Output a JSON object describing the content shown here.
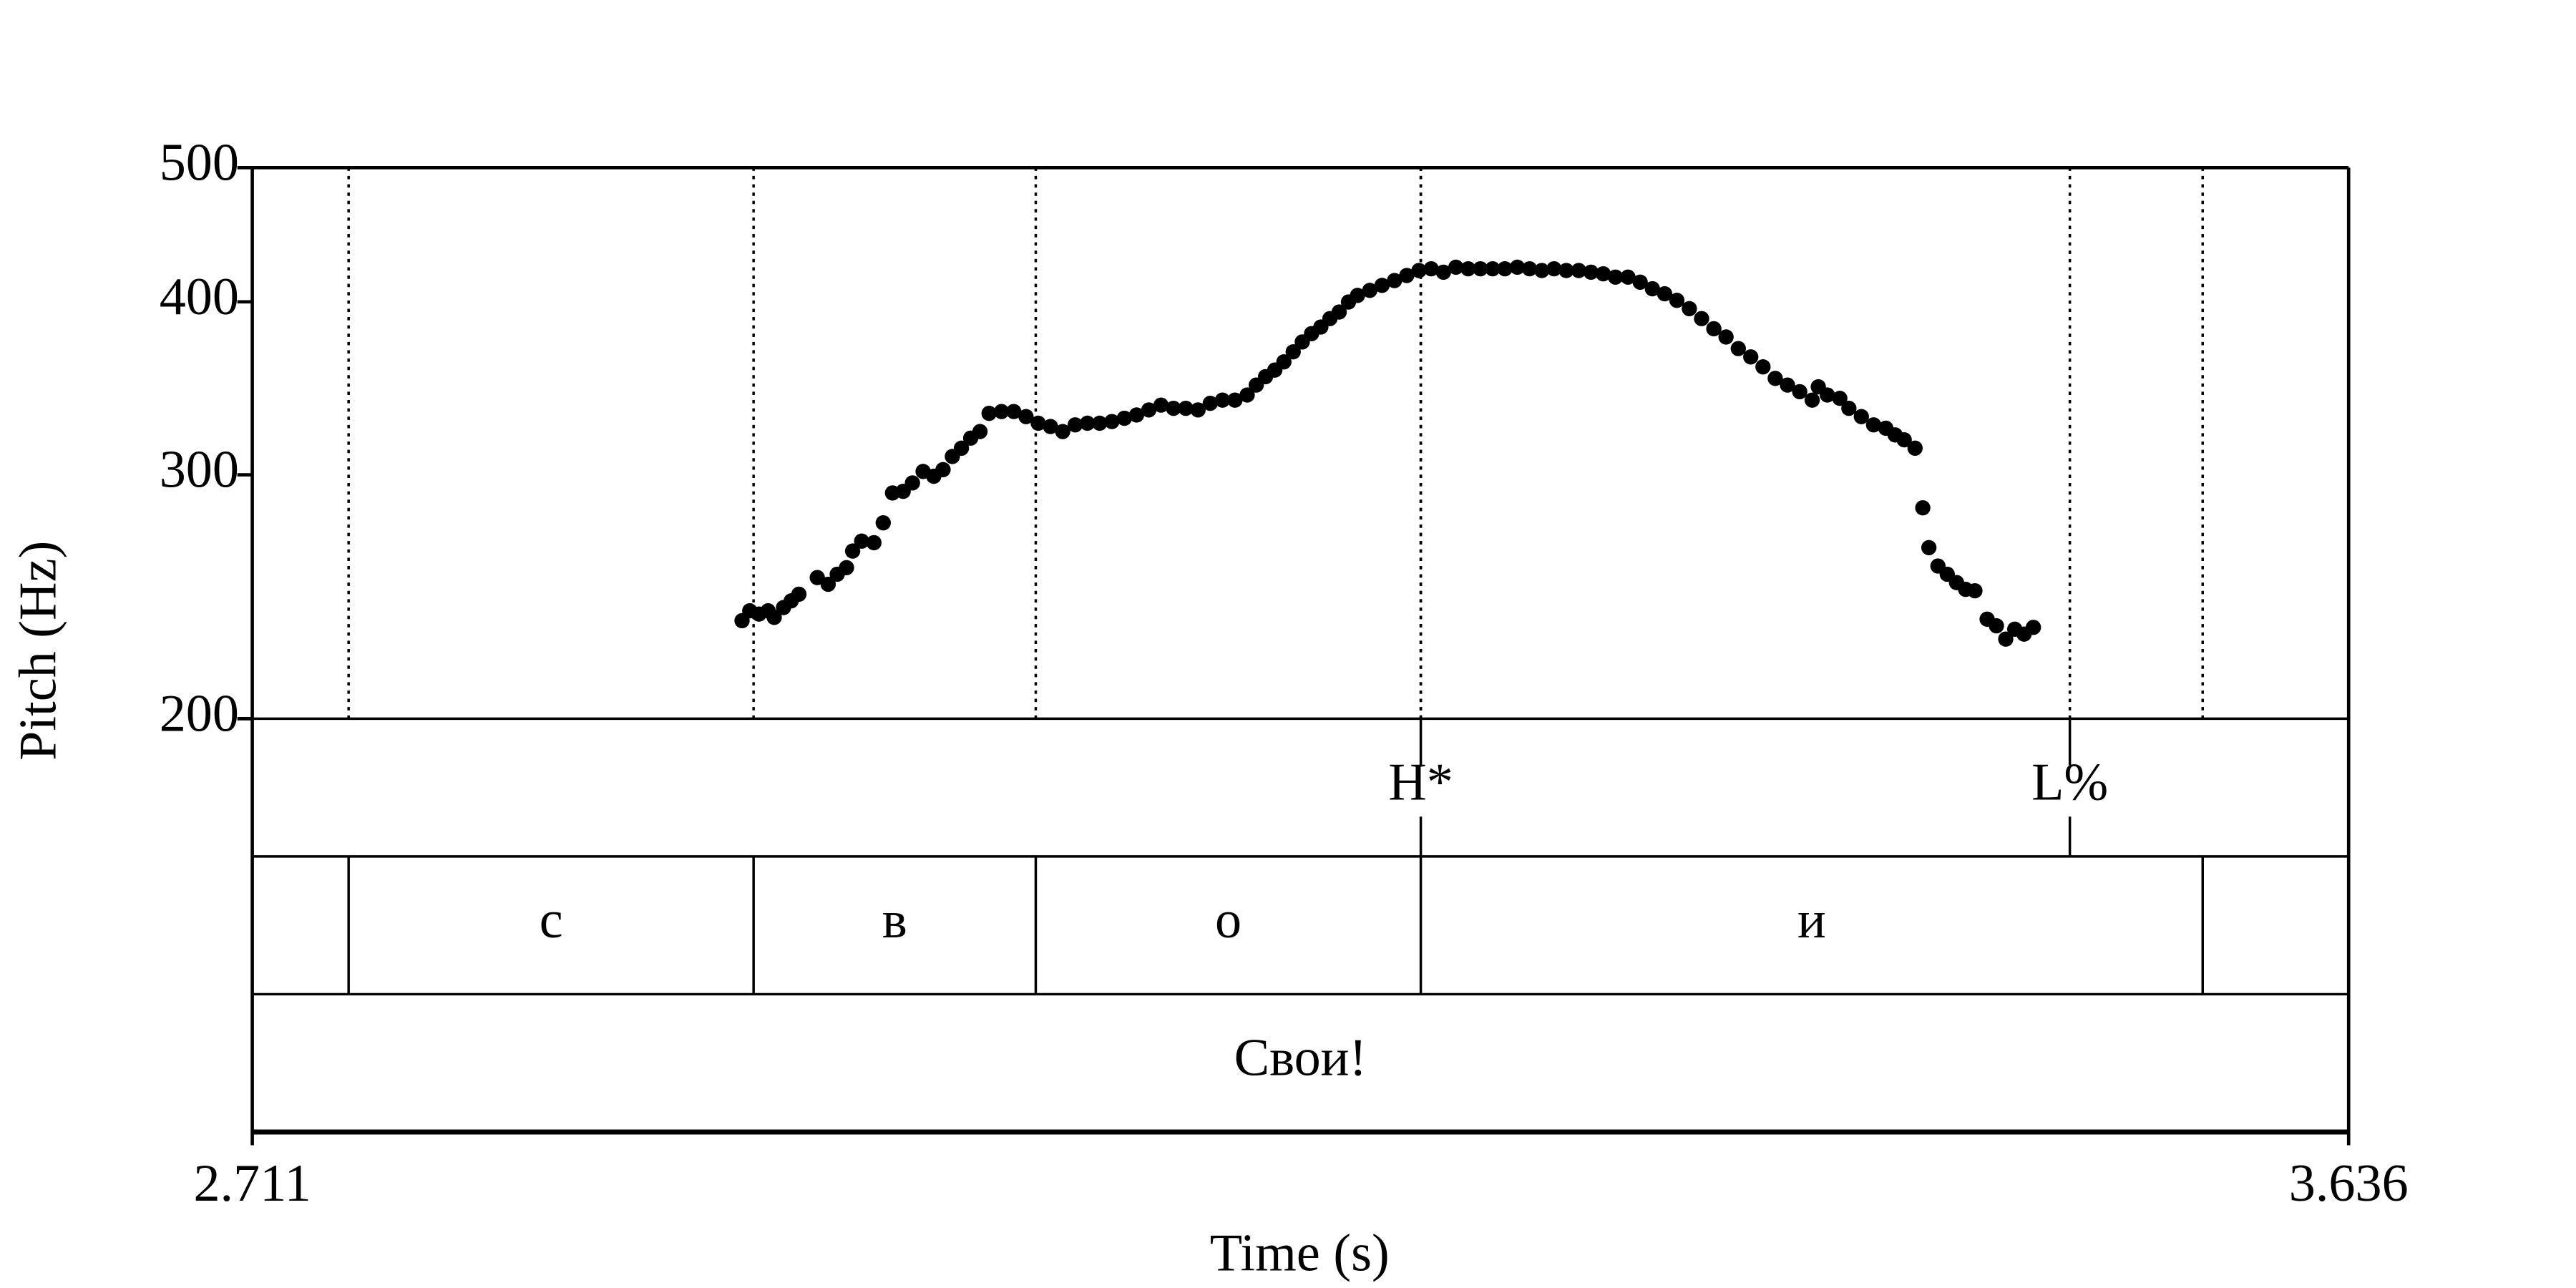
{
  "chart_data": {
    "type": "scatter",
    "ylabel": "Pitch (Hz)",
    "xlabel": "Time (s)",
    "xlim": [
      2.711,
      3.636
    ],
    "xticks": [
      2.711,
      3.636
    ],
    "ylim": [
      200,
      500
    ],
    "yticks": [
      200,
      300,
      400,
      500
    ],
    "y_scale": "log",
    "color": "#000000",
    "x": [
      2.9271,
      2.9305,
      2.9346,
      2.9386,
      2.9413,
      2.9454,
      2.9488,
      2.9522,
      2.9603,
      2.9651,
      2.9691,
      2.9732,
      2.9759,
      2.9799,
      2.9853,
      2.9894,
      2.9935,
      2.9982,
      3.0023,
      3.007,
      3.0117,
      3.0158,
      3.0199,
      3.0239,
      3.028,
      3.0321,
      3.0361,
      3.0416,
      3.047,
      3.0524,
      3.0578,
      3.0632,
      3.0686,
      3.0741,
      3.0795,
      3.0849,
      3.0903,
      3.0958,
      3.1012,
      3.1066,
      3.112,
      3.1175,
      3.1229,
      3.1283,
      3.1337,
      3.1391,
      3.1446,
      3.15,
      3.154,
      3.1581,
      3.1622,
      3.1662,
      3.1703,
      3.1743,
      3.1784,
      3.1825,
      3.1865,
      3.1906,
      3.1947,
      3.1987,
      3.2041,
      3.2095,
      3.215,
      3.2204,
      3.2258,
      3.2312,
      3.2366,
      3.2421,
      3.2475,
      3.2529,
      3.2583,
      3.2637,
      3.2692,
      3.2746,
      3.28,
      3.2854,
      3.2908,
      3.2963,
      3.3017,
      3.3071,
      3.3125,
      3.318,
      3.3234,
      3.3288,
      3.3342,
      3.3396,
      3.3451,
      3.3505,
      3.3559,
      3.3613,
      3.3667,
      3.3722,
      3.3776,
      3.383,
      3.3884,
      3.3938,
      3.3993,
      3.402,
      3.406,
      3.4115,
      3.4155,
      3.421,
      3.4264,
      3.4318,
      3.4359,
      3.4399,
      3.4447,
      3.4481,
      3.4508,
      3.4548,
      3.4589,
      3.463,
      3.467,
      3.4711,
      3.4765,
      3.4806,
      3.4847,
      3.4887,
      3.4928,
      3.4969
    ],
    "values": [
      235.4,
      239.3,
      238.0,
      239.3,
      236.7,
      240.6,
      243.3,
      246.0,
      252.9,
      250.1,
      254.3,
      257.1,
      264.3,
      268.7,
      268.0,
      277.0,
      291.1,
      291.9,
      296.0,
      301.7,
      299.3,
      302.6,
      309.3,
      313.6,
      318.9,
      322.4,
      332.3,
      333.3,
      333.3,
      330.5,
      326.9,
      325.1,
      322.4,
      326.0,
      326.9,
      326.9,
      327.8,
      329.6,
      331.4,
      334.2,
      336.9,
      335.1,
      335.1,
      334.2,
      337.9,
      339.7,
      339.7,
      342.6,
      348.3,
      353.2,
      357.1,
      362.0,
      368.1,
      374.2,
      379.4,
      383.6,
      389.0,
      393.3,
      399.9,
      404.3,
      407.7,
      411.1,
      414.4,
      417.9,
      421.4,
      422.6,
      420.2,
      423.7,
      422.6,
      422.6,
      422.6,
      422.6,
      423.7,
      422.6,
      421.4,
      422.6,
      421.4,
      421.4,
      420.2,
      419.1,
      416.8,
      416.8,
      413.3,
      408.8,
      405.4,
      401.0,
      395.5,
      389.0,
      382.5,
      377.3,
      370.1,
      365.0,
      359.0,
      352.2,
      348.3,
      344.5,
      339.7,
      347.3,
      342.6,
      340.7,
      335.1,
      330.5,
      326.0,
      324.2,
      320.6,
      318.0,
      313.6,
      284.0,
      265.8,
      257.8,
      254.3,
      250.8,
      248.0,
      247.4,
      236.0,
      233.4,
      228.3,
      232.1,
      230.2,
      232.8
    ],
    "tone_tier": {
      "times": [
        3.2266,
        3.513
      ],
      "labels": [
        "H*",
        "L%"
      ]
    },
    "segment_tier": {
      "boundaries": [
        2.7535,
        2.9322,
        3.0567,
        3.2266,
        3.5716
      ],
      "labels": [
        "с",
        "в",
        "о",
        "и"
      ]
    },
    "word_tier": {
      "labels": [
        "Свои!"
      ]
    }
  }
}
